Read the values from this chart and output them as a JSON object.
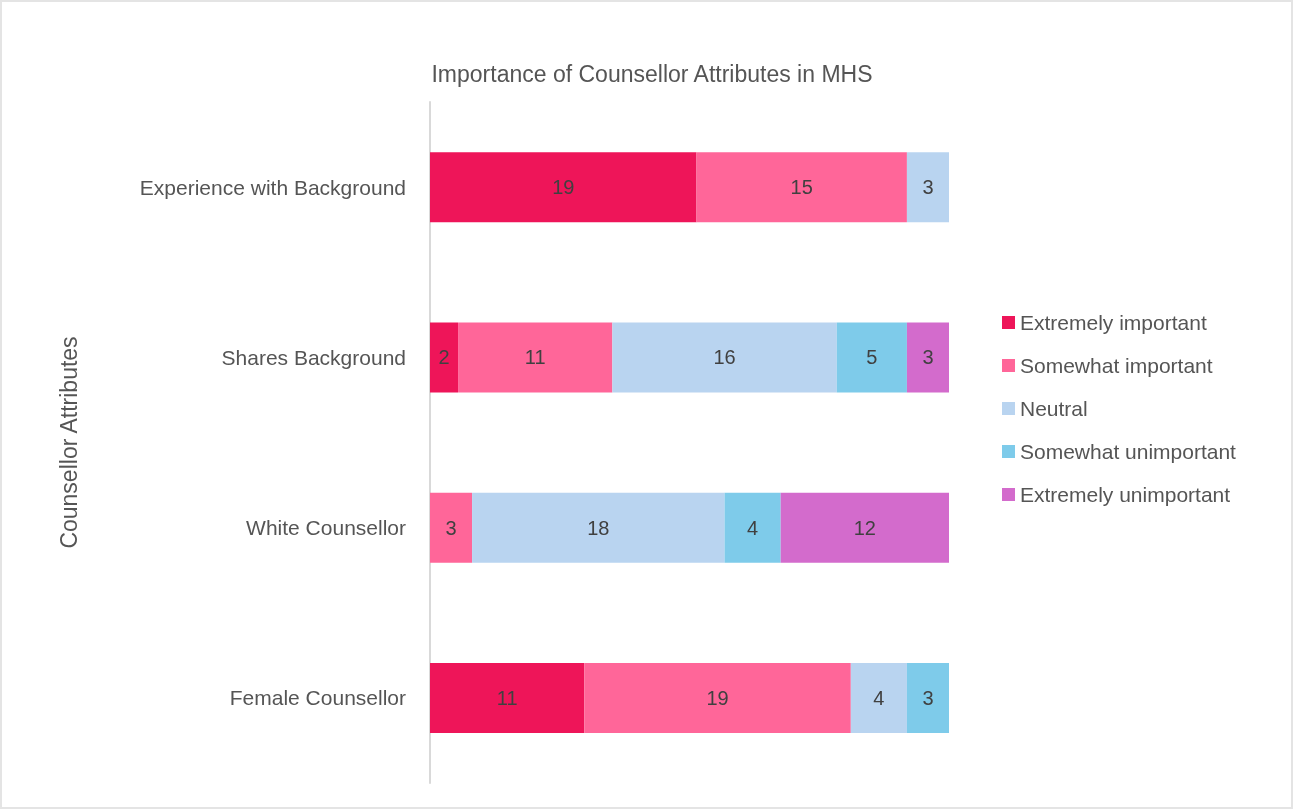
{
  "chart_data": {
    "type": "bar",
    "orientation": "horizontal",
    "stacked": true,
    "title": "Importance of Counsellor Attributes in MHS",
    "ylabel": "Counsellor Attributes",
    "categories": [
      "Experience with Background",
      "Shares Background",
      "White Counsellor",
      "Female Counsellor"
    ],
    "series": [
      {
        "name": "Extremely important",
        "color": "#ee1559",
        "values": [
          19,
          2,
          null,
          11
        ]
      },
      {
        "name": "Somewhat important",
        "color": "#ff6699",
        "values": [
          15,
          11,
          3,
          19
        ]
      },
      {
        "name": "Neutral",
        "color": "#b9d4f0",
        "values": [
          3,
          16,
          18,
          4
        ]
      },
      {
        "name": "Somewhat unimportant",
        "color": "#7ecbea",
        "values": [
          null,
          5,
          4,
          3
        ]
      },
      {
        "name": "Extremely unimportant",
        "color": "#d36bcc",
        "values": [
          null,
          3,
          12,
          null
        ]
      }
    ],
    "xlim": [
      0,
      37
    ],
    "tick_labels": "y",
    "data_labels": true,
    "legend": "right",
    "grid": false
  }
}
